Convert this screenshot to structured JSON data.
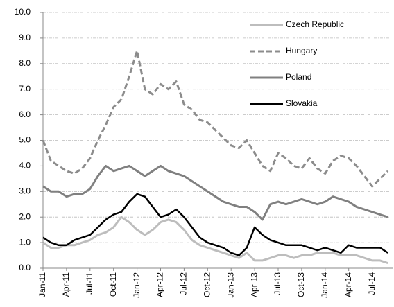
{
  "chart_data": {
    "type": "line",
    "categories": [
      "Jan-11",
      null,
      null,
      "Apr-11",
      null,
      null,
      "Jul-11",
      null,
      null,
      "Oct-11",
      null,
      null,
      "Jan-12",
      null,
      null,
      "Apr-12",
      null,
      null,
      "Jul-12",
      null,
      null,
      "Oct-12",
      null,
      null,
      "Jan-13",
      null,
      null,
      "Apr-13",
      null,
      null,
      "Jul-13",
      null,
      null,
      "Oct-13",
      null,
      null,
      "Jan-14",
      null,
      null,
      "Apr-14",
      null,
      null,
      "Jul-14",
      null,
      null
    ],
    "series": [
      {
        "name": "Czech Republic",
        "color": "#bdbdbd",
        "dashed": false,
        "values": [
          1.0,
          0.8,
          0.8,
          0.9,
          0.9,
          1.0,
          1.1,
          1.3,
          1.4,
          1.6,
          2.0,
          1.8,
          1.5,
          1.3,
          1.5,
          1.8,
          1.9,
          1.8,
          1.5,
          1.1,
          0.9,
          0.8,
          0.7,
          0.6,
          0.5,
          0.4,
          0.6,
          0.3,
          0.3,
          0.4,
          0.5,
          0.5,
          0.4,
          0.5,
          0.5,
          0.6,
          0.6,
          0.6,
          0.5,
          0.5,
          0.5,
          0.4,
          0.3,
          0.3,
          0.2
        ]
      },
      {
        "name": "Hungary",
        "color": "#8c8c8c",
        "dashed": true,
        "values": [
          5.0,
          4.2,
          4.0,
          3.8,
          3.7,
          3.9,
          4.3,
          5.0,
          5.6,
          6.3,
          6.6,
          7.5,
          8.5,
          7.0,
          6.8,
          7.2,
          7.0,
          7.3,
          6.4,
          6.2,
          5.8,
          5.7,
          5.4,
          5.1,
          4.8,
          4.7,
          5.0,
          4.5,
          4.0,
          3.8,
          4.5,
          4.3,
          4.0,
          3.9,
          4.3,
          3.9,
          3.7,
          4.2,
          4.4,
          4.3,
          4.0,
          3.6,
          3.2,
          3.5,
          3.8
        ]
      },
      {
        "name": "Poland",
        "color": "#808080",
        "dashed": false,
        "values": [
          3.2,
          3.0,
          3.0,
          2.8,
          2.9,
          2.9,
          3.1,
          3.6,
          4.0,
          3.8,
          3.9,
          4.0,
          3.8,
          3.6,
          3.8,
          4.0,
          3.8,
          3.7,
          3.6,
          3.4,
          3.2,
          3.0,
          2.8,
          2.6,
          2.5,
          2.4,
          2.4,
          2.2,
          1.9,
          2.5,
          2.6,
          2.5,
          2.6,
          2.7,
          2.6,
          2.5,
          2.6,
          2.8,
          2.7,
          2.6,
          2.4,
          2.3,
          2.2,
          2.1,
          2.0
        ]
      },
      {
        "name": "Slovakia",
        "color": "#000000",
        "dashed": false,
        "values": [
          1.2,
          1.0,
          0.9,
          0.9,
          1.1,
          1.2,
          1.3,
          1.6,
          1.9,
          2.1,
          2.2,
          2.6,
          2.9,
          2.8,
          2.4,
          2.0,
          2.1,
          2.3,
          2.0,
          1.6,
          1.2,
          1.0,
          0.9,
          0.8,
          0.6,
          0.5,
          0.8,
          1.6,
          1.3,
          1.1,
          1.0,
          0.9,
          0.9,
          0.9,
          0.8,
          0.7,
          0.8,
          0.7,
          0.6,
          0.9,
          0.8,
          0.8,
          0.8,
          0.8,
          0.6
        ]
      }
    ],
    "ylim": [
      0,
      10
    ],
    "yticks": [
      {
        "value": 0,
        "label": "0.0"
      },
      {
        "value": 1,
        "label": "1.0"
      },
      {
        "value": 2,
        "label": "2.0"
      },
      {
        "value": 3,
        "label": "3.0"
      },
      {
        "value": 4,
        "label": "4.0"
      },
      {
        "value": 5,
        "label": "5.0"
      },
      {
        "value": 6,
        "label": "6.0"
      },
      {
        "value": 7,
        "label": "7.0"
      },
      {
        "value": 8,
        "label": "8.0"
      },
      {
        "value": 9,
        "label": "9.0"
      },
      {
        "value": 10,
        "label": "10.0"
      }
    ],
    "grid": true,
    "legend": "upper right"
  }
}
